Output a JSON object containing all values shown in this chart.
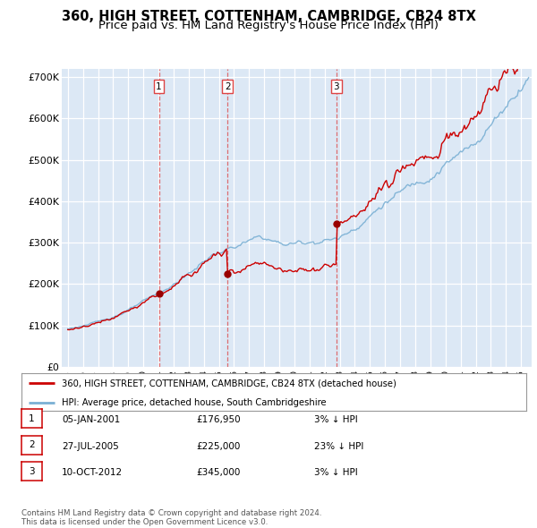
{
  "title": "360, HIGH STREET, COTTENHAM, CAMBRIDGE, CB24 8TX",
  "subtitle": "Price paid vs. HM Land Registry's House Price Index (HPI)",
  "ylim": [
    0,
    720000
  ],
  "yticks": [
    0,
    100000,
    200000,
    300000,
    400000,
    500000,
    600000,
    700000
  ],
  "ytick_labels": [
    "£0",
    "£100K",
    "£200K",
    "£300K",
    "£400K",
    "£500K",
    "£600K",
    "£700K"
  ],
  "sale_dates": [
    2001.03,
    2005.57,
    2012.78
  ],
  "sale_prices": [
    176950,
    225000,
    345000
  ],
  "sale_labels": [
    "1",
    "2",
    "3"
  ],
  "legend_line1": "360, HIGH STREET, COTTENHAM, CAMBRIDGE, CB24 8TX (detached house)",
  "legend_line2": "HPI: Average price, detached house, South Cambridgeshire",
  "legend_color1": "#cc0000",
  "legend_color2": "#7ab0d4",
  "table_rows": [
    {
      "num": "1",
      "date": "05-JAN-2001",
      "price": "£176,950",
      "hpi": "3% ↓ HPI"
    },
    {
      "num": "2",
      "date": "27-JUL-2005",
      "price": "£225,000",
      "hpi": "23% ↓ HPI"
    },
    {
      "num": "3",
      "date": "10-OCT-2012",
      "price": "£345,000",
      "hpi": "3% ↓ HPI"
    }
  ],
  "footer": "Contains HM Land Registry data © Crown copyright and database right 2024.\nThis data is licensed under the Open Government Licence v3.0.",
  "bg_color": "#dce8f5",
  "grid_color": "#ffffff",
  "title_fontsize": 10.5,
  "subtitle_fontsize": 9.5,
  "prop_color": "#cc0000",
  "hpi_color": "#7ab0d4",
  "vline_color": "#dd4444"
}
